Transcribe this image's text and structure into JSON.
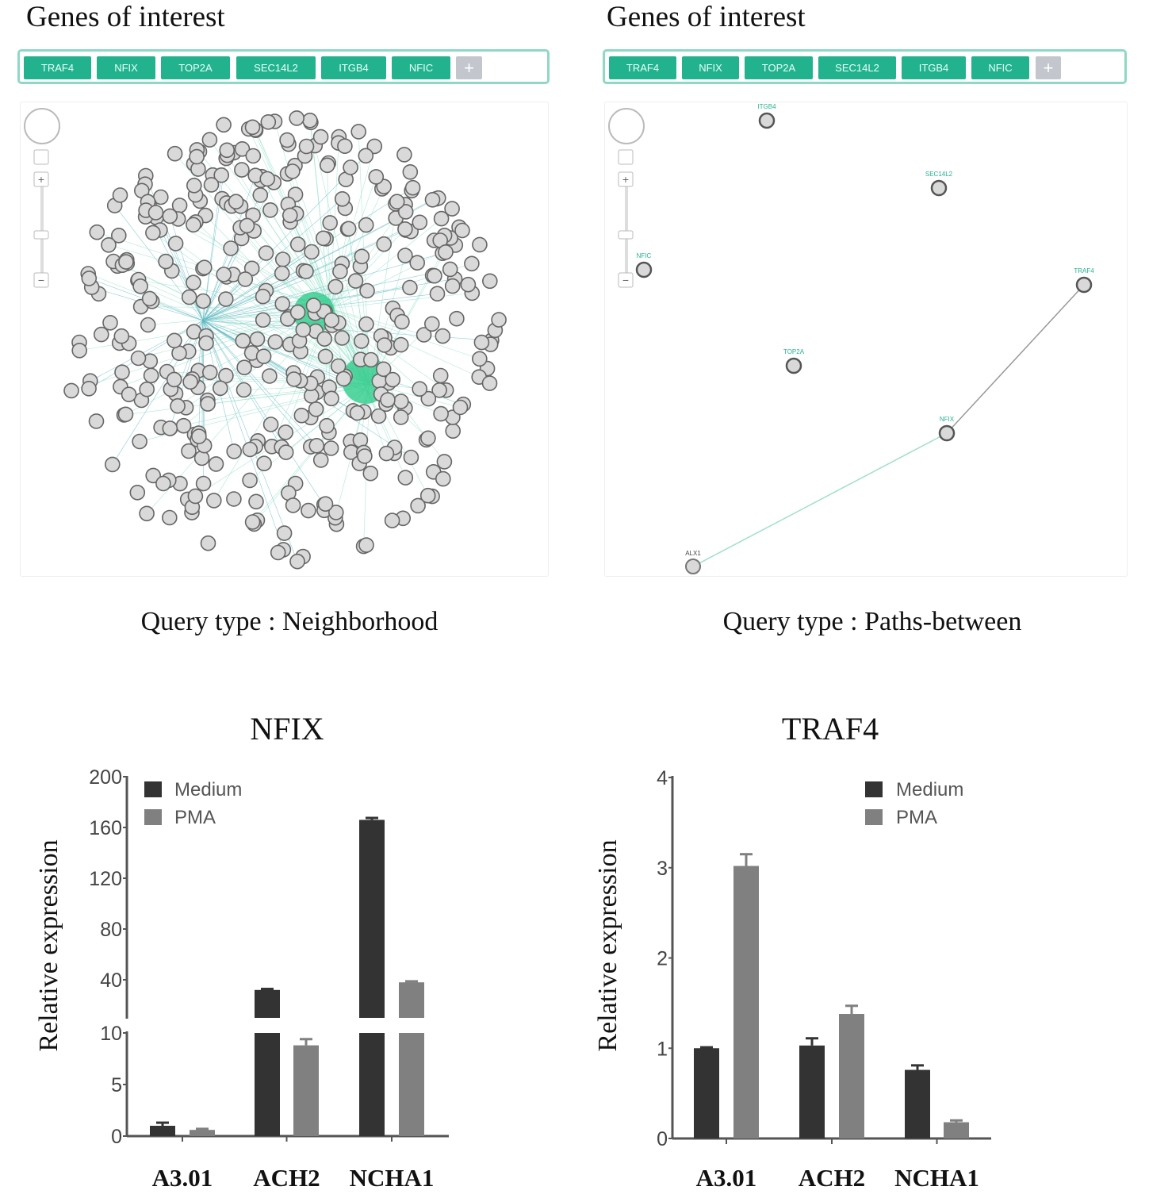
{
  "panels": [
    {
      "title": "Genes of interest",
      "genes": [
        "TRAF4",
        "NFIX",
        "TOP2A",
        "SEC14L2",
        "ITGB4",
        "NFIC"
      ],
      "add_label": "+",
      "caption": "Query type : Neighborhood"
    },
    {
      "title": "Genes of interest",
      "genes": [
        "TRAF4",
        "NFIX",
        "TOP2A",
        "SEC14L2",
        "ITGB4",
        "NFIC"
      ],
      "add_label": "+",
      "caption": "Query type : Paths-between",
      "network_nodes": [
        "ITGB4",
        "SEC14L2",
        "NFIC",
        "TRAF4",
        "TOP2A",
        "NFIX",
        "ALX1"
      ]
    }
  ],
  "colors": {
    "accent": "#22b38e",
    "medium": "#333333",
    "pma": "#808080",
    "node": "#d9d9d9"
  },
  "icons": [
    "pan-control-icon",
    "fit-icon",
    "zoom-in-icon",
    "zoom-slider-icon",
    "zoom-out-icon"
  ],
  "chart_data": [
    {
      "type": "bar",
      "title": "NFIX",
      "ylabel": "Relative  expression",
      "categories": [
        "A3.01",
        "ACH2",
        "NCHA1"
      ],
      "y_axis": "broken",
      "ylim_lower": [
        0,
        10
      ],
      "ylim_upper": [
        10,
        200
      ],
      "yticks": [
        "0",
        "5",
        "10",
        "40",
        "80",
        "120",
        "160",
        "200"
      ],
      "legend": "top-left",
      "series": [
        {
          "name": "Medium",
          "values": [
            1.0,
            32,
            166
          ],
          "errors": [
            0.3,
            0.8,
            1.5
          ]
        },
        {
          "name": "PMA",
          "values": [
            0.6,
            8.8,
            38
          ],
          "errors": [
            0.1,
            0.6,
            0.8
          ]
        }
      ]
    },
    {
      "type": "bar",
      "title": "TRAF4",
      "ylabel": "Relative  expression",
      "categories": [
        "A3.01",
        "ACH2",
        "NCHA1"
      ],
      "ylim": [
        0,
        4
      ],
      "yticks": [
        "0",
        "1",
        "2",
        "3",
        "4"
      ],
      "legend": "top-right",
      "series": [
        {
          "name": "Medium",
          "values": [
            1.0,
            1.03,
            0.76
          ],
          "errors": [
            0.01,
            0.08,
            0.05
          ]
        },
        {
          "name": "PMA",
          "values": [
            3.02,
            1.38,
            0.18
          ],
          "errors": [
            0.13,
            0.09,
            0.02
          ]
        }
      ]
    }
  ]
}
